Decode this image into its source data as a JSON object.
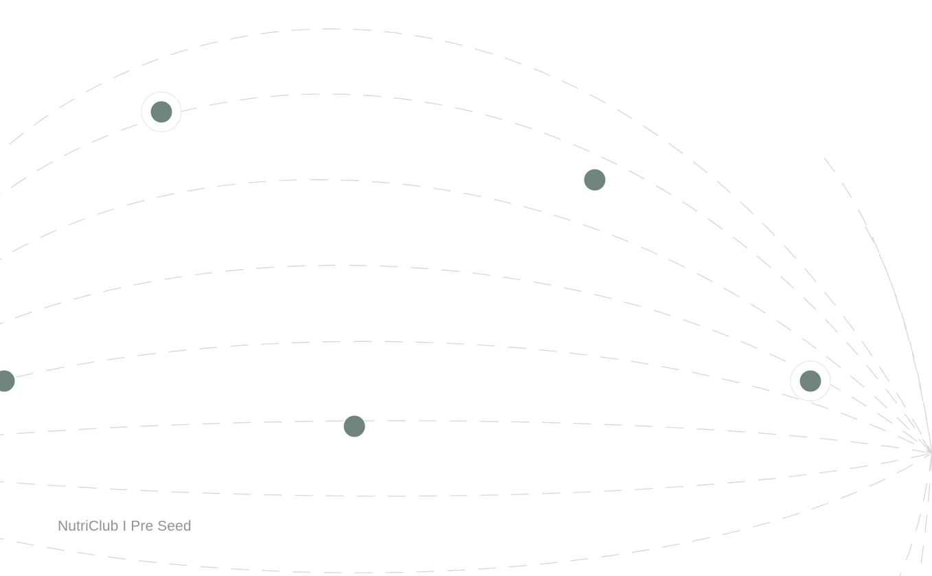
{
  "footer": {
    "company": "NutriClub",
    "separator": " I ",
    "stage": "Pre Seed"
  },
  "colors": {
    "background": "#ffffff",
    "dashed_line": "#d6d6d4",
    "node_fill": "#6f847d",
    "node_halo": "#ececea",
    "footer_text": "#8e9590"
  }
}
